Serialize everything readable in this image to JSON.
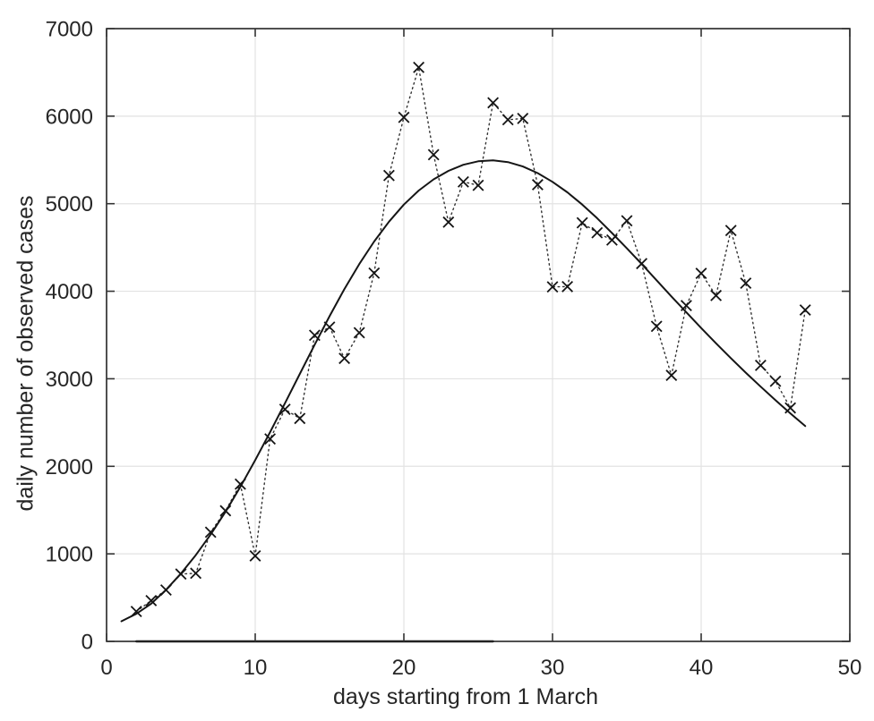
{
  "figure": {
    "background": "#ffffff",
    "axis_color": "#262626",
    "tick_color": "#333333",
    "grid_color": "#e2e2e2",
    "text_color": "#262626",
    "line_color": "#151515",
    "dotted_line_color": "#333333",
    "marker_color": "#151515"
  },
  "chart_data": {
    "type": "line",
    "title": "",
    "xlabel": "days starting from 1 March",
    "ylabel": "daily number of observed cases",
    "xlim": [
      0,
      50
    ],
    "ylim": [
      0,
      7000
    ],
    "xticks": [
      0,
      10,
      20,
      30,
      40,
      50
    ],
    "yticks": [
      0,
      1000,
      2000,
      3000,
      4000,
      5000,
      6000,
      7000
    ],
    "grid": true,
    "box": true,
    "legend": "none",
    "series": [
      {
        "name": "observed daily cases",
        "line_style": "dotted",
        "marker": "x",
        "x": [
          2,
          3,
          4,
          5,
          6,
          7,
          8,
          9,
          10,
          11,
          12,
          13,
          14,
          15,
          16,
          17,
          18,
          19,
          20,
          21,
          22,
          23,
          24,
          25,
          26,
          27,
          28,
          29,
          30,
          31,
          32,
          33,
          34,
          35,
          36,
          37,
          38,
          39,
          40,
          41,
          42,
          43,
          44,
          45,
          46,
          47
        ],
        "y": [
          342,
          466,
          587,
          769,
          778,
          1247,
          1492,
          1797,
          977,
          2313,
          2651,
          2547,
          3497,
          3590,
          3233,
          3526,
          4207,
          5322,
          5986,
          6557,
          5560,
          4789,
          5249,
          5210,
          6153,
          5959,
          5974,
          5217,
          4050,
          4053,
          4782,
          4668,
          4585,
          4805,
          4316,
          3599,
          3039,
          3836,
          4204,
          3951,
          4694,
          4092,
          3153,
          2972,
          2667,
          3786
        ]
      },
      {
        "name": "fitted model curve",
        "line_style": "solid",
        "marker": "none",
        "x": [
          1,
          2,
          3,
          4,
          5,
          6,
          7,
          8,
          9,
          10,
          11,
          12,
          13,
          14,
          15,
          16,
          17,
          18,
          19,
          20,
          21,
          22,
          23,
          24,
          25,
          26,
          27,
          28,
          29,
          30,
          31,
          32,
          33,
          34,
          35,
          36,
          37,
          38,
          39,
          40,
          41,
          42,
          43,
          44,
          45,
          46,
          47
        ],
        "y": [
          230,
          315,
          430,
          590,
          775,
          985,
          1220,
          1480,
          1765,
          2070,
          2390,
          2720,
          3055,
          3390,
          3715,
          4025,
          4310,
          4568,
          4795,
          4990,
          5150,
          5278,
          5375,
          5445,
          5485,
          5495,
          5475,
          5425,
          5350,
          5250,
          5130,
          4990,
          4835,
          4665,
          4490,
          4310,
          4125,
          3940,
          3760,
          3580,
          3405,
          3235,
          3070,
          2910,
          2755,
          2605,
          2460
        ]
      },
      {
        "name": "near-zero baseline segment",
        "line_style": "solid",
        "marker": "none",
        "x": [
          2,
          26
        ],
        "y": [
          0,
          0
        ]
      }
    ]
  }
}
